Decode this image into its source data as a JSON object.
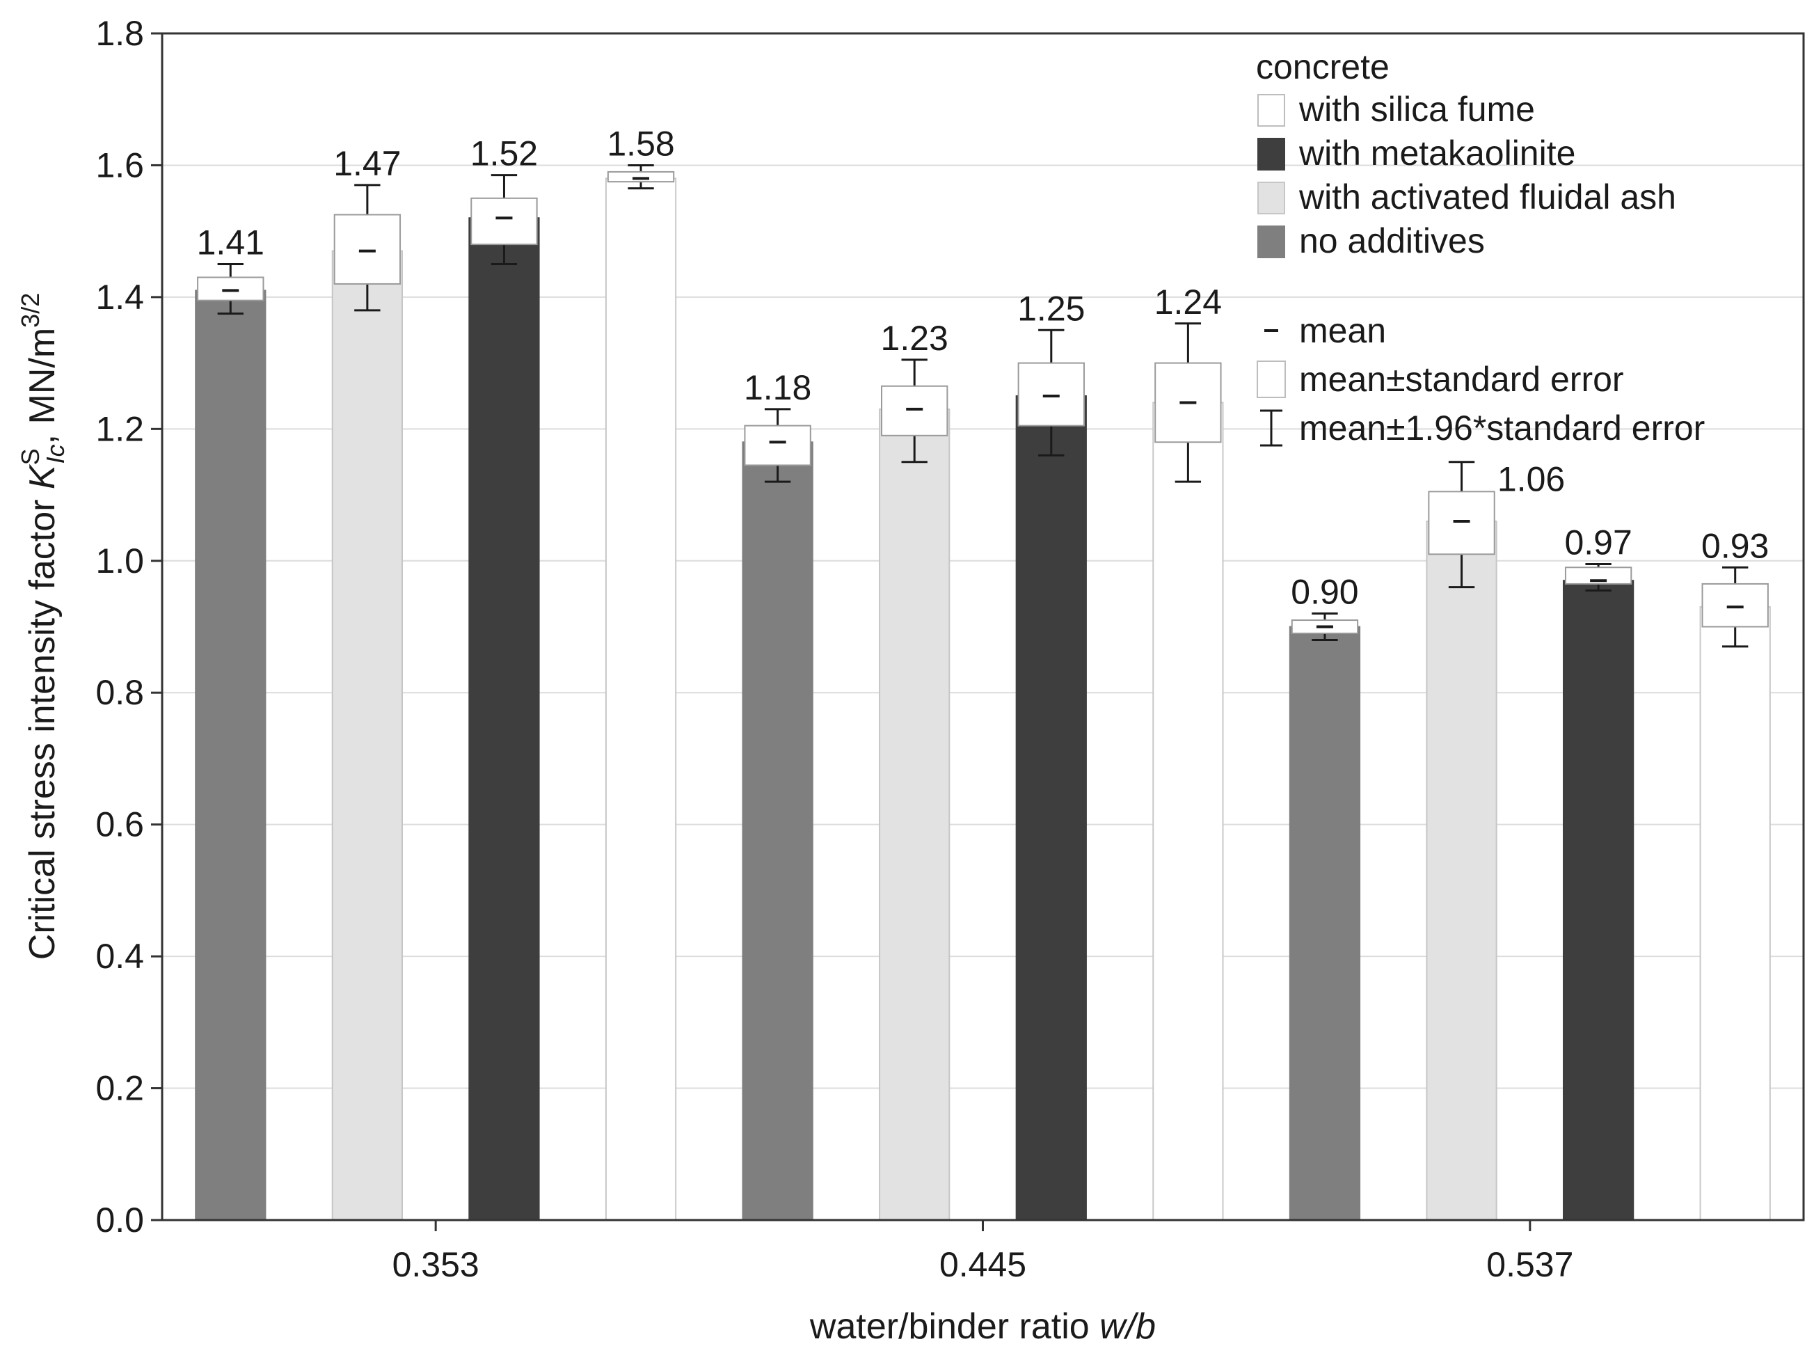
{
  "chart_data": {
    "type": "bar",
    "title": "",
    "xlabel": "water/binder ratio",
    "xlabel_italic": "w/b",
    "ylabel_prefix": "Critical stress intensity factor",
    "ylabel_symbol": "K",
    "ylabel_sub": "Ic",
    "ylabel_sup": "S",
    "ylabel_unit": ", MN/m",
    "ylabel_unit_sup": "3/2",
    "ylim": [
      0,
      1.8
    ],
    "y_ticks": [
      "0.0",
      "0.2",
      "0.4",
      "0.6",
      "0.8",
      "1.0",
      "1.2",
      "1.4",
      "1.6",
      "1.8"
    ],
    "grid": true,
    "categories": [
      "0.353",
      "0.445",
      "0.537"
    ],
    "series": [
      {
        "name": "no additives",
        "color": "#7f7f7f",
        "values": [
          1.41,
          1.18,
          0.9
        ],
        "labels": [
          "1.41",
          "1.18",
          "0.90"
        ],
        "se_low": [
          1.395,
          1.145,
          0.89
        ],
        "se_high": [
          1.43,
          1.205,
          0.91
        ],
        "ci_low": [
          1.375,
          1.12,
          0.88
        ],
        "ci_high": [
          1.45,
          1.23,
          0.92
        ]
      },
      {
        "name": "with activated fluidal ash",
        "color": "#e2e2e2",
        "values": [
          1.47,
          1.23,
          1.06
        ],
        "labels": [
          "1.47",
          "1.23",
          "1.06"
        ],
        "se_low": [
          1.42,
          1.19,
          1.01
        ],
        "se_high": [
          1.525,
          1.265,
          1.105
        ],
        "ci_low": [
          1.38,
          1.15,
          0.96
        ],
        "ci_high": [
          1.57,
          1.305,
          1.15
        ]
      },
      {
        "name": "with metakaolinite",
        "color": "#3e3e3e",
        "values": [
          1.52,
          1.25,
          0.97
        ],
        "labels": [
          "1.52",
          "1.25",
          "0.97"
        ],
        "se_low": [
          1.48,
          1.205,
          0.965
        ],
        "se_high": [
          1.55,
          1.3,
          0.99
        ],
        "ci_low": [
          1.45,
          1.16,
          0.955
        ],
        "ci_high": [
          1.585,
          1.35,
          0.995
        ]
      },
      {
        "name": "with silica fume",
        "color": "#ffffff",
        "values": [
          1.58,
          1.24,
          0.93
        ],
        "labels": [
          "1.58",
          "1.24",
          "0.93"
        ],
        "se_low": [
          1.575,
          1.18,
          0.9
        ],
        "se_high": [
          1.59,
          1.3,
          0.965
        ],
        "ci_low": [
          1.565,
          1.12,
          0.87
        ],
        "ci_high": [
          1.6,
          1.36,
          0.99
        ]
      }
    ],
    "legend": {
      "position": "top-right",
      "title": "concrete",
      "items": [
        {
          "label": "with silica fume",
          "color": "#ffffff"
        },
        {
          "label": "with metakaolinite",
          "color": "#3e3e3e"
        },
        {
          "label": "with activated fluidal ash",
          "color": "#e2e2e2"
        },
        {
          "label": "no additives",
          "color": "#7f7f7f"
        }
      ],
      "stats": [
        {
          "label": "mean",
          "symbol": "mean"
        },
        {
          "label": "mean±standard error",
          "symbol": "box"
        },
        {
          "label": "mean±1.96*standard error",
          "symbol": "whisker"
        }
      ]
    }
  }
}
